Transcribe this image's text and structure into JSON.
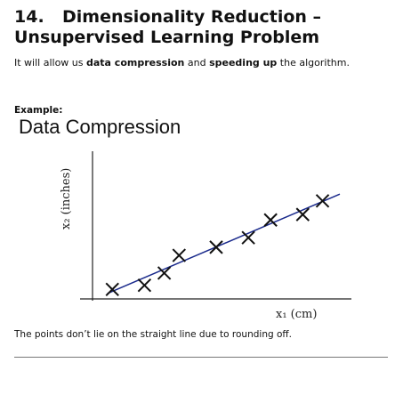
{
  "heading": {
    "number": "14.",
    "line1": "Dimensionality Reduction –",
    "line2": "Unsupervised Learning Problem"
  },
  "intro": {
    "t1": "It will allow us ",
    "b1": "data compression",
    "t2": " and ",
    "b2": "speeding up",
    "t3": " the algorithm."
  },
  "example_label": "Example:",
  "slide_title": "Data Compression",
  "chart_data": {
    "type": "scatter",
    "title": "Data Compression",
    "xlabel": "x₁ (cm)",
    "ylabel": "x₂ (inches)",
    "xlim": [
      0,
      10
    ],
    "ylim": [
      0,
      10
    ],
    "grid": false,
    "points": [
      {
        "x": 0.8,
        "y": 0.7
      },
      {
        "x": 2.1,
        "y": 1.0
      },
      {
        "x": 2.9,
        "y": 1.9
      },
      {
        "x": 3.5,
        "y": 3.2
      },
      {
        "x": 5.0,
        "y": 3.8
      },
      {
        "x": 6.3,
        "y": 4.5
      },
      {
        "x": 7.2,
        "y": 5.8
      },
      {
        "x": 8.5,
        "y": 6.2
      },
      {
        "x": 9.3,
        "y": 7.2
      }
    ],
    "line": {
      "x": [
        0.6,
        10.0
      ],
      "y": [
        0.4,
        7.7
      ],
      "color": "#1a2a8c"
    },
    "marker_color": "#111111",
    "axis_color": "#222222"
  },
  "caption": "The points don’t lie on the straight line due to rounding off."
}
